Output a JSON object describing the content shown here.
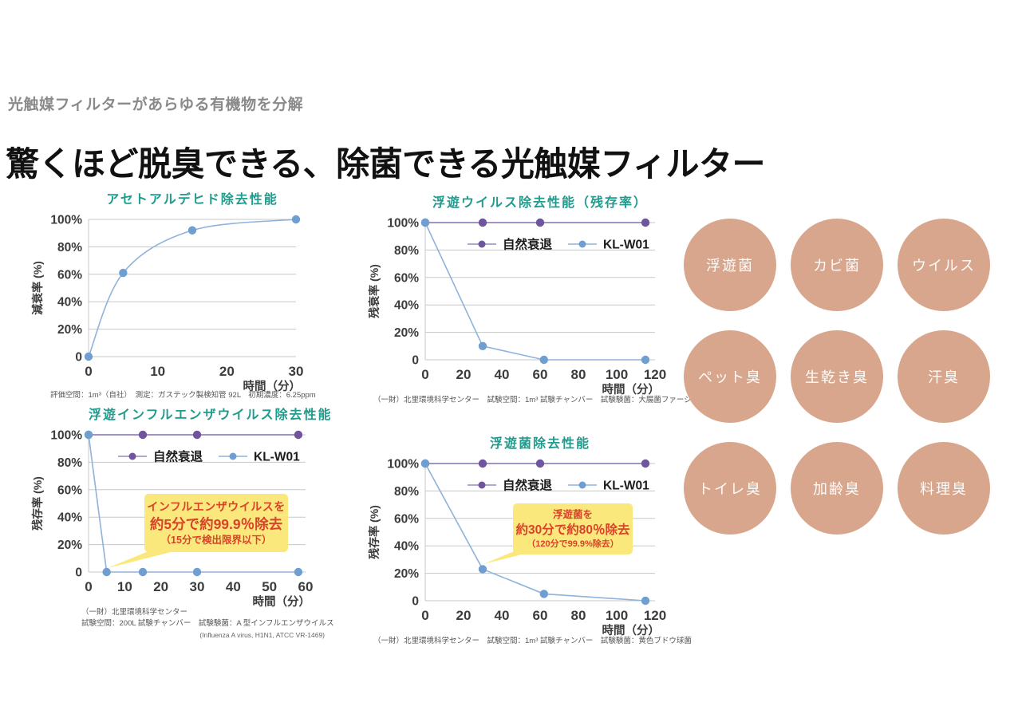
{
  "page": {
    "subtitle": "光触媒フィルターがあらゆる有機物を分解",
    "title": "驚くほど脱臭できる、除菌できる光触媒フィルター"
  },
  "colors": {
    "teal": "#1f9c8d",
    "blue_line": "#8fb3da",
    "blue_dot": "#6f9ed1",
    "blue_light": "#a9c6e4",
    "purple_line": "#8471ae",
    "purple_dot": "#6f549e",
    "purple_light": "#b2a6d2",
    "grid": "#c7c7c7",
    "axis_text": "#3c3c3c",
    "legend_text": "#1c1c1c",
    "callout_bg": "#fbe87d",
    "callout_text": "#d8432a",
    "circle_bg": "#d7a68c"
  },
  "chart_data": [
    {
      "type": "line",
      "title": "アセトアルデヒド除去性能",
      "ylabel": "減衰率 (%)",
      "xlabel": "時間（分）",
      "ylim": [
        0,
        100
      ],
      "x_max": 30,
      "x_ticks": [
        0,
        10,
        20,
        30
      ],
      "y_tick_labels": [
        "100%",
        "80%",
        "60%",
        "40%",
        "20%",
        "0"
      ],
      "grid": true,
      "smooth": true,
      "legend": false,
      "series": [
        {
          "name": "KL-W01",
          "color": "blue",
          "x": [
            0,
            5,
            15,
            30
          ],
          "y": [
            0,
            61,
            92,
            100
          ]
        }
      ],
      "footnote1": "評価空間：1m³（自社）　測定：ガステック製検知管 92L　初期濃度：6.25ppm"
    },
    {
      "type": "line",
      "title": "浮遊ウイルス除去性能（残存率）",
      "ylabel": "残衰率 (%)",
      "xlabel": "時間（分）",
      "ylim": [
        0,
        100
      ],
      "x_max": 120,
      "x_ticks": [
        0,
        20,
        40,
        60,
        80,
        100,
        120
      ],
      "y_tick_labels": [
        "100%",
        "80%",
        "60%",
        "40%",
        "20%",
        "0"
      ],
      "grid": true,
      "smooth": false,
      "legend": true,
      "series": [
        {
          "name": "自然衰退",
          "color": "purple",
          "x": [
            0,
            30,
            60,
            115
          ],
          "y": [
            100,
            100,
            100,
            100
          ]
        },
        {
          "name": "KL-W01",
          "color": "blue",
          "x": [
            0,
            30,
            62,
            115
          ],
          "y": [
            100,
            10,
            0,
            0
          ]
        }
      ],
      "footnote1": "（一財）北里環境科学センター　試験空間：1m³ 試験チャンバー　試験験菌：大腸菌ファージ"
    },
    {
      "type": "line",
      "title": "浮遊インフルエンザウイルス除去性能",
      "ylabel": "残存率 (%)",
      "xlabel": "時間（分）",
      "ylim": [
        0,
        100
      ],
      "x_max": 60,
      "x_ticks": [
        0,
        10,
        20,
        30,
        40,
        50,
        60
      ],
      "y_tick_labels": [
        "100%",
        "80%",
        "60%",
        "40%",
        "20%",
        "0"
      ],
      "grid": true,
      "smooth": false,
      "legend": true,
      "series": [
        {
          "name": "自然衰退",
          "color": "purple",
          "x": [
            0,
            15,
            30,
            58
          ],
          "y": [
            100,
            100,
            100,
            100
          ]
        },
        {
          "name": "KL-W01",
          "color": "blue",
          "x": [
            0,
            5,
            15,
            30,
            58
          ],
          "y": [
            100,
            0,
            0,
            0,
            0
          ]
        }
      ],
      "callout": {
        "line1": "インフルエンザウイルスを",
        "line2": "約5分で約99.9％除去",
        "line3": "（15分で検出限界以下）"
      },
      "footnote1": "（一財）北里環境科学センター",
      "footnote2": "試験空間：200L 試験チャンバー　試験験菌：A 型インフルエンザウイルス",
      "footnote3": "(Influenza A virus, H1N1, ATCC VR-1469)"
    },
    {
      "type": "line",
      "title": "浮遊菌除去性能",
      "ylabel": "残存率 (%)",
      "xlabel": "時間（分）",
      "ylim": [
        0,
        100
      ],
      "x_max": 120,
      "x_ticks": [
        0,
        20,
        40,
        60,
        80,
        100,
        120
      ],
      "y_tick_labels": [
        "100%",
        "80%",
        "60%",
        "40%",
        "20%",
        "0"
      ],
      "grid": true,
      "smooth": false,
      "legend": true,
      "series": [
        {
          "name": "自然衰退",
          "color": "purple",
          "x": [
            0,
            30,
            60,
            115
          ],
          "y": [
            100,
            100,
            100,
            100
          ]
        },
        {
          "name": "KL-W01",
          "color": "blue",
          "x": [
            0,
            30,
            62,
            115
          ],
          "y": [
            100,
            23,
            5,
            0
          ]
        }
      ],
      "callout": {
        "line1": "浮遊菌を",
        "line2": "約30分で約80％除去",
        "line3": "（120分で99.9%除去）"
      },
      "footnote1": "（一財）北里環境科学センター　試験空間：1m³ 試験チャンバー　試験験菌：黄色ブドウ球菌"
    }
  ],
  "circles": [
    {
      "label": "浮遊菌"
    },
    {
      "label": "カビ菌"
    },
    {
      "label": "ウイルス"
    },
    {
      "label": "ペット臭"
    },
    {
      "label": "生乾き臭"
    },
    {
      "label": "汗臭"
    },
    {
      "label": "トイレ臭"
    },
    {
      "label": "加齢臭"
    },
    {
      "label": "料理臭"
    }
  ]
}
